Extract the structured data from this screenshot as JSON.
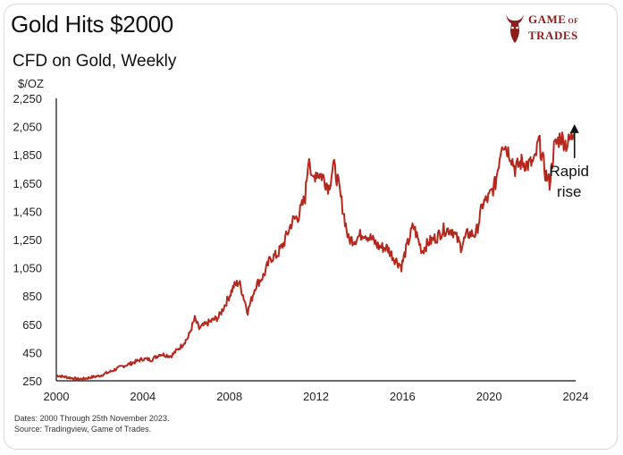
{
  "header": {
    "title": "Gold Hits $2000",
    "subtitle": "CFD on Gold, Weekly"
  },
  "logo": {
    "line1": "GAME",
    "line1_small": "OF",
    "line2": "TRADES",
    "color": "#8b1d1d",
    "icon": "bull-icon"
  },
  "footer": {
    "line1": "Dates: 2000 Through 25th November 2023.",
    "line2": "Source: Tradingview, Game of Trades."
  },
  "chart_data": {
    "type": "line",
    "title": "Gold Hits $2000",
    "subtitle": "CFD on Gold, Weekly",
    "ylabel": "$/OZ",
    "xlabel": "",
    "ylim": [
      250,
      2250
    ],
    "xlim": [
      2000,
      2024
    ],
    "yticks": [
      "2,250",
      "2,050",
      "1,850",
      "1,650",
      "1,450",
      "1,250",
      "1,050",
      "850",
      "650",
      "450",
      "250"
    ],
    "ytick_values": [
      2250,
      2050,
      1850,
      1650,
      1450,
      1250,
      1050,
      850,
      650,
      450,
      250
    ],
    "xticks": [
      "2000",
      "2004",
      "2008",
      "2012",
      "2016",
      "2020",
      "2024"
    ],
    "xtick_values": [
      2000,
      2004,
      2008,
      2012,
      2016,
      2020,
      2024
    ],
    "line_color": "#b5281e",
    "annotation": {
      "line1": "Rapid",
      "line2": "rise",
      "x": 2023.7,
      "y": 1700
    },
    "series": [
      {
        "name": "Gold CFD",
        "x": [
          2000.0,
          2000.3,
          2000.7,
          2001.0,
          2001.3,
          2001.6,
          2002.0,
          2002.5,
          2003.0,
          2003.4,
          2004.0,
          2004.4,
          2004.8,
          2005.3,
          2005.8,
          2006.1,
          2006.4,
          2006.6,
          2007.0,
          2007.5,
          2007.9,
          2008.2,
          2008.45,
          2008.7,
          2008.85,
          2009.2,
          2009.6,
          2009.9,
          2010.2,
          2010.5,
          2010.9,
          2011.2,
          2011.5,
          2011.68,
          2011.8,
          2012.0,
          2012.3,
          2012.6,
          2012.8,
          2013.0,
          2013.3,
          2013.5,
          2013.8,
          2014.2,
          2014.6,
          2014.9,
          2015.3,
          2015.6,
          2015.95,
          2016.2,
          2016.5,
          2016.9,
          2017.2,
          2017.6,
          2017.9,
          2018.3,
          2018.7,
          2019.0,
          2019.4,
          2019.7,
          2020.0,
          2020.3,
          2020.6,
          2020.8,
          2021.0,
          2021.2,
          2021.5,
          2021.8,
          2022.1,
          2022.3,
          2022.6,
          2022.8,
          2023.0,
          2023.3,
          2023.6,
          2023.9
        ],
        "values": [
          290,
          280,
          270,
          262,
          265,
          275,
          285,
          315,
          350,
          370,
          405,
          400,
          440,
          425,
          500,
          560,
          690,
          620,
          660,
          700,
          820,
          920,
          950,
          820,
          740,
          920,
          1000,
          1120,
          1140,
          1220,
          1380,
          1420,
          1550,
          1880,
          1650,
          1730,
          1700,
          1620,
          1780,
          1670,
          1420,
          1250,
          1250,
          1300,
          1250,
          1200,
          1190,
          1120,
          1060,
          1200,
          1350,
          1170,
          1230,
          1270,
          1320,
          1320,
          1200,
          1290,
          1290,
          1500,
          1550,
          1650,
          1950,
          1900,
          1850,
          1750,
          1800,
          1780,
          1800,
          1950,
          1720,
          1650,
          1900,
          1980,
          1920,
          2000
        ]
      }
    ]
  }
}
